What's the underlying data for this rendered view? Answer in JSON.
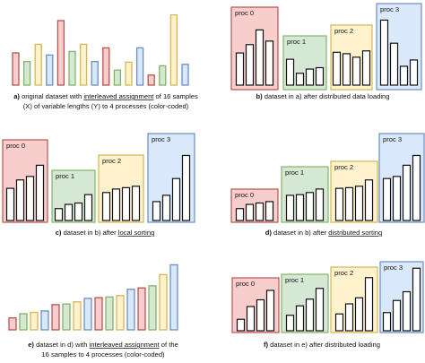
{
  "colors": {
    "p0": {
      "fill": "#f8cecc",
      "stroke": "#b85450"
    },
    "p1": {
      "fill": "#d5e8d4",
      "stroke": "#82b366"
    },
    "p2": {
      "fill": "#fff2cc",
      "stroke": "#d6b656"
    },
    "p3": {
      "fill": "#dae8fc",
      "stroke": "#6c8ebf"
    },
    "bar_stroke": "#111111"
  },
  "proc_labels": [
    "proc 0",
    "proc 1",
    "proc 2",
    "proc 3"
  ],
  "panels": {
    "a": {
      "caption": [
        "a) original dataset with interleaved assignment of 16 samples",
        "(X) of variable lengths (Y) to 4 processes (color-coded)"
      ],
      "lengths": [
        0.45,
        0.33,
        0.57,
        0.42,
        0.9,
        0.47,
        0.57,
        0.33,
        0.52,
        0.21,
        0.32,
        0.52,
        0.14,
        0.27,
        0.98,
        0.29
      ],
      "procs": [
        0,
        1,
        2,
        3,
        0,
        1,
        2,
        3,
        0,
        1,
        2,
        3,
        0,
        1,
        2,
        3
      ]
    },
    "b": {
      "caption": [
        "b) dataset in a) after distributed data loading"
      ],
      "groups": [
        [
          0.46,
          0.58,
          0.79,
          0.63
        ],
        [
          0.37,
          0.17,
          0.23,
          0.25
        ],
        [
          0.47,
          0.45,
          0.4,
          0.49
        ],
        [
          0.93,
          0.6,
          0.27,
          0.36
        ]
      ]
    },
    "c": {
      "caption": [
        "c) dataset in b) after local sorting"
      ],
      "groups": [
        [
          0.46,
          0.58,
          0.63,
          0.79
        ],
        [
          0.17,
          0.23,
          0.25,
          0.37
        ],
        [
          0.4,
          0.45,
          0.47,
          0.49
        ],
        [
          0.27,
          0.36,
          0.6,
          0.93
        ]
      ]
    },
    "d": {
      "caption": [
        "d) dataset in b) after distributed sorting"
      ],
      "groups": [
        [
          0.17,
          0.23,
          0.25,
          0.27
        ],
        [
          0.36,
          0.37,
          0.4,
          0.45
        ],
        [
          0.46,
          0.47,
          0.49,
          0.58
        ],
        [
          0.6,
          0.63,
          0.79,
          0.93
        ]
      ]
    },
    "e": {
      "caption": [
        "e) dataset in d) with interleaved assignment of the",
        "16 samples to 4 processes (color-coded)"
      ],
      "lengths": [
        0.17,
        0.23,
        0.25,
        0.27,
        0.36,
        0.37,
        0.4,
        0.45,
        0.46,
        0.47,
        0.49,
        0.58,
        0.6,
        0.63,
        0.79,
        0.93
      ],
      "procs": [
        0,
        1,
        2,
        3,
        0,
        1,
        2,
        3,
        0,
        1,
        2,
        3,
        0,
        1,
        2,
        3
      ]
    },
    "f": {
      "caption": [
        "f) dataset in e) after distributed loading"
      ],
      "groups": [
        [
          0.17,
          0.36,
          0.46,
          0.6
        ],
        [
          0.23,
          0.37,
          0.47,
          0.63
        ],
        [
          0.25,
          0.4,
          0.49,
          0.79
        ],
        [
          0.27,
          0.45,
          0.58,
          0.93
        ]
      ]
    }
  }
}
